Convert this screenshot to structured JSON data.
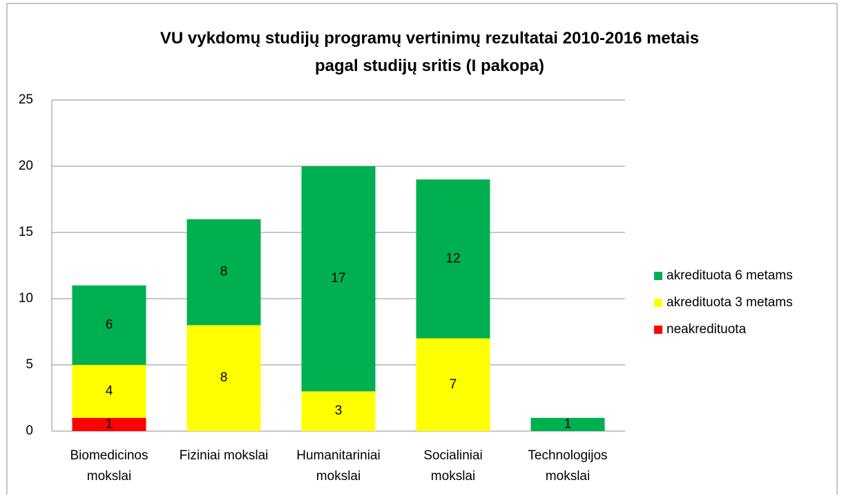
{
  "chart_data": {
    "type": "stacked_bar",
    "title": "VU vykdomų studijų programų vertinimų rezultatai 2010-2016 metais\npagal studijų sritis (I pakopa)",
    "categories": [
      "Biomedicinos\nmokslai",
      "Fiziniai mokslai",
      "Humanitariniai\nmokslai",
      "Socialiniai\nmokslai",
      "Technologijos\nmokslai"
    ],
    "series": [
      {
        "name": "neakredituota",
        "color": "#ff0000",
        "values": [
          1,
          null,
          null,
          null,
          null
        ]
      },
      {
        "name": "akredituota 3 metams",
        "color": "#ffff00",
        "values": [
          4,
          8,
          3,
          7,
          null
        ]
      },
      {
        "name": "akredituota 6 metams",
        "color": "#00b050",
        "values": [
          6,
          8,
          17,
          12,
          1
        ]
      }
    ],
    "ylim": [
      0,
      25
    ],
    "yticks": [
      0,
      5,
      10,
      15,
      20,
      25
    ],
    "grid": true,
    "legend": "right"
  }
}
